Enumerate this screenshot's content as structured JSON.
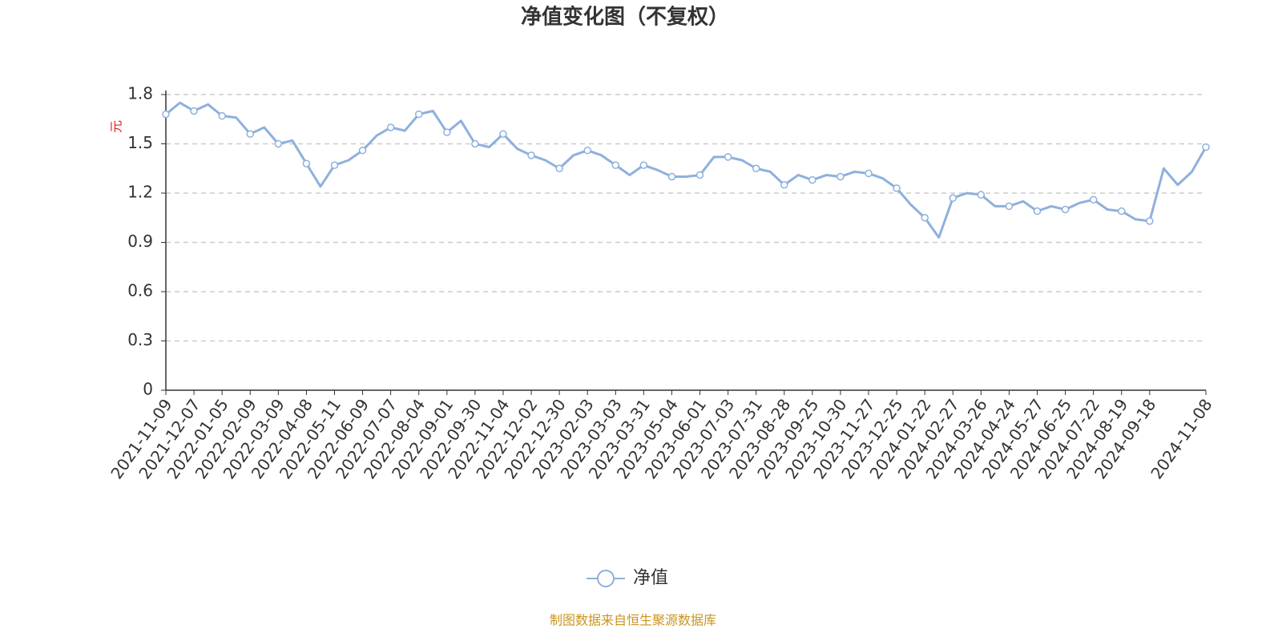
{
  "chart_data": {
    "type": "line",
    "title": "净值变化图（不复权）",
    "y_label": "元",
    "categories": [
      "2021-11-09",
      null,
      "2021-12-07",
      null,
      "2022-01-05",
      null,
      "2022-02-09",
      null,
      "2022-03-09",
      null,
      "2022-04-08",
      null,
      "2022-05-11",
      null,
      "2022-06-09",
      null,
      "2022-07-07",
      null,
      "2022-08-04",
      null,
      "2022-09-01",
      null,
      "2022-09-30",
      null,
      "2022-11-04",
      null,
      "2022-12-02",
      null,
      "2022-12-30",
      null,
      "2023-02-03",
      null,
      "2023-03-03",
      null,
      "2023-03-31",
      null,
      "2023-05-04",
      null,
      "2023-06-01",
      null,
      "2023-07-03",
      null,
      "2023-07-31",
      null,
      "2023-08-28",
      null,
      "2023-09-25",
      null,
      "2023-10-30",
      null,
      "2023-11-27",
      null,
      "2023-12-25",
      null,
      "2024-01-22",
      null,
      "2024-02-27",
      null,
      "2024-03-26",
      null,
      "2024-04-24",
      null,
      "2024-05-27",
      null,
      "2024-06-25",
      null,
      "2024-07-22",
      null,
      "2024-08-19",
      null,
      "2024-09-18",
      null,
      null,
      null,
      "2024-11-08"
    ],
    "series": [
      {
        "name": "净值",
        "color": "#8eb0dd",
        "values": [
          1.68,
          1.75,
          1.7,
          1.74,
          1.67,
          1.66,
          1.56,
          1.6,
          1.5,
          1.52,
          1.38,
          1.24,
          1.37,
          1.4,
          1.46,
          1.55,
          1.6,
          1.58,
          1.68,
          1.7,
          1.57,
          1.64,
          1.5,
          1.48,
          1.56,
          1.47,
          1.43,
          1.4,
          1.35,
          1.43,
          1.46,
          1.43,
          1.37,
          1.31,
          1.37,
          1.34,
          1.3,
          1.3,
          1.31,
          1.42,
          1.42,
          1.4,
          1.35,
          1.33,
          1.25,
          1.31,
          1.28,
          1.31,
          1.3,
          1.33,
          1.32,
          1.29,
          1.23,
          1.13,
          1.05,
          0.93,
          1.17,
          1.2,
          1.19,
          1.12,
          1.12,
          1.15,
          1.09,
          1.12,
          1.1,
          1.14,
          1.16,
          1.1,
          1.09,
          1.04,
          1.03,
          1.35,
          1.25,
          1.33,
          1.48
        ]
      }
    ],
    "ylim": [
      0,
      1.8
    ],
    "yticks": [
      0,
      0.3,
      0.6,
      0.9,
      1.2,
      1.5,
      1.8
    ],
    "grid": true,
    "source": "制图数据来自恒生聚源数据库"
  }
}
